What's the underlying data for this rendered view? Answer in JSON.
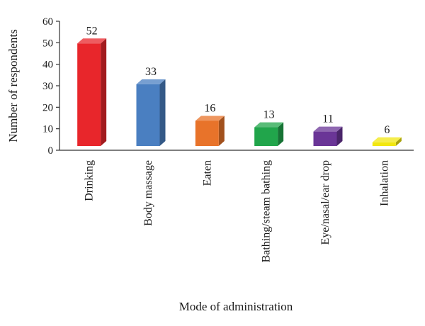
{
  "chart_data": {
    "type": "bar",
    "style": "3d",
    "title": "",
    "xlabel": "Mode of administration",
    "ylabel": "Number of respondents",
    "ylim": [
      0,
      60
    ],
    "yticks": [
      0,
      10,
      20,
      30,
      40,
      50,
      60
    ],
    "grid": false,
    "legend": "none",
    "categories": [
      "Drinking",
      "Body massage",
      "Eaten",
      "Bathing/steam bathing",
      "Eye/nasal/ear drop",
      "Inhalation"
    ],
    "values": [
      52,
      33,
      16,
      13,
      11,
      6
    ],
    "data_labels": [
      "52",
      "33",
      "16",
      "13",
      "11",
      "6"
    ],
    "colors": [
      "#e8262b",
      "#4a7fc1",
      "#e8732a",
      "#21a54b",
      "#6a3597",
      "#f2e70f"
    ]
  }
}
